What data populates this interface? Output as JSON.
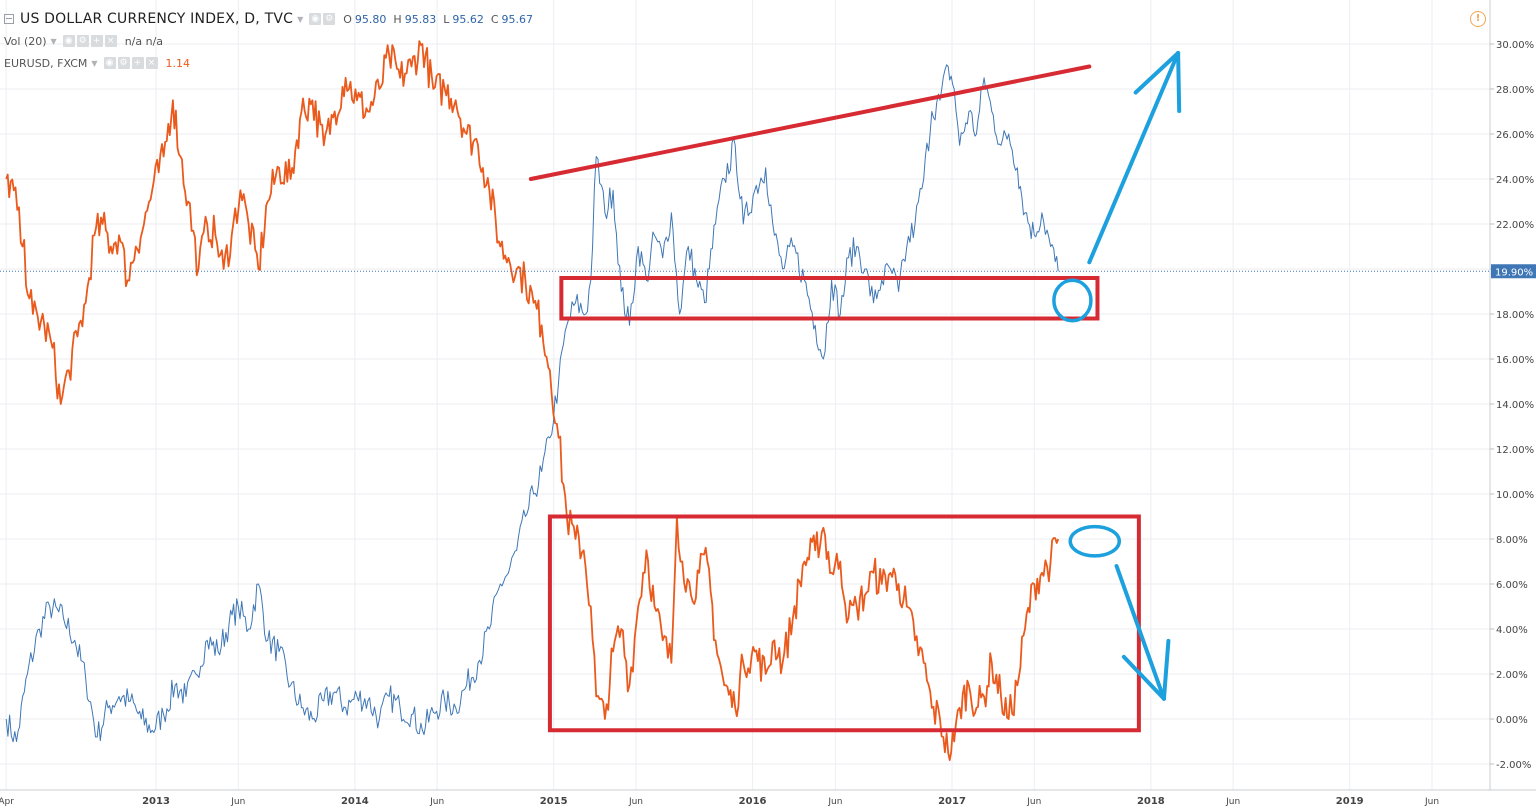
{
  "header": {
    "symbol_title": "US DOLLAR CURRENCY INDEX, D, TVC",
    "ohlc": [
      {
        "label": "O",
        "value": "95.80"
      },
      {
        "label": "H",
        "value": "95.83"
      },
      {
        "label": "L",
        "value": "95.62"
      },
      {
        "label": "C",
        "value": "95.67"
      }
    ],
    "volume_label": "Vol (20)",
    "volume_value": "n/a n/a",
    "compare_label": "EURUSD, FXCM",
    "compare_value": "1.14"
  },
  "icons": {
    "warning": "warning-icon",
    "collapse": "collapse-icon",
    "controls": [
      "eye-icon",
      "gear-icon",
      "plus-icon",
      "close-icon"
    ]
  },
  "colors": {
    "dxy_series": "#3f77b6",
    "eurusd_series": "#ea5a1d",
    "annotation_red": "#d72b33",
    "annotation_blue": "#1ca0de",
    "current_price_label_bg": "#3f77b6",
    "grid": "#eceef0"
  },
  "chart_data": {
    "type": "line",
    "y_scale": "percent",
    "ylim": [
      -3,
      31
    ],
    "y_ticks": [
      "30.00%",
      "28.00%",
      "26.00%",
      "24.00%",
      "22.00%",
      "20.00%",
      "18.00%",
      "16.00%",
      "14.00%",
      "12.00%",
      "10.00%",
      "8.00%",
      "6.00%",
      "4.00%",
      "2.00%",
      "0.00%",
      "-2.00%"
    ],
    "current_value_label": "19.90%",
    "current_value": 19.9,
    "x_ticks": [
      {
        "date": "2012-04-01",
        "label": "Apr"
      },
      {
        "date": "2013-01-01",
        "label": "2013"
      },
      {
        "date": "2013-06-01",
        "label": "Jun"
      },
      {
        "date": "2014-01-01",
        "label": "2014"
      },
      {
        "date": "2014-06-01",
        "label": "Jun"
      },
      {
        "date": "2015-01-01",
        "label": "2015"
      },
      {
        "date": "2015-06-01",
        "label": "Jun"
      },
      {
        "date": "2016-01-01",
        "label": "2016"
      },
      {
        "date": "2016-06-01",
        "label": "Jun"
      },
      {
        "date": "2017-01-01",
        "label": "2017"
      },
      {
        "date": "2017-06-01",
        "label": "Jun"
      },
      {
        "date": "2018-01-01",
        "label": "2018"
      },
      {
        "date": "2018-06-01",
        "label": "Jun"
      },
      {
        "date": "2019-01-01",
        "label": "2019"
      },
      {
        "date": "2019-06-01",
        "label": "Jun"
      }
    ],
    "xlim": [
      "2012-04-01",
      "2019-10-01"
    ],
    "grid": true,
    "series": [
      {
        "name": "US DOLLAR CURRENCY INDEX",
        "color": "#3f77b6",
        "points": [
          [
            "2012-04-01",
            0.0
          ],
          [
            "2012-04-20",
            -1.0
          ],
          [
            "2012-05-10",
            2.0
          ],
          [
            "2012-06-01",
            4.0
          ],
          [
            "2012-06-20",
            5.0
          ],
          [
            "2012-07-15",
            4.5
          ],
          [
            "2012-08-05",
            3.5
          ],
          [
            "2012-08-25",
            1.8
          ],
          [
            "2012-09-15",
            -0.8
          ],
          [
            "2012-10-05",
            0.5
          ],
          [
            "2012-10-25",
            1.0
          ],
          [
            "2012-11-15",
            0.8
          ],
          [
            "2012-12-05",
            0.0
          ],
          [
            "2012-12-25",
            -0.5
          ],
          [
            "2013-01-15",
            0.2
          ],
          [
            "2013-02-05",
            1.5
          ],
          [
            "2013-02-25",
            1.0
          ],
          [
            "2013-03-15",
            2.0
          ],
          [
            "2013-04-05",
            3.5
          ],
          [
            "2013-04-25",
            3.0
          ],
          [
            "2013-05-15",
            4.2
          ],
          [
            "2013-06-01",
            5.0
          ],
          [
            "2013-06-20",
            4.0
          ],
          [
            "2013-07-08",
            6.0
          ],
          [
            "2013-07-25",
            3.5
          ],
          [
            "2013-08-15",
            3.0
          ],
          [
            "2013-09-05",
            1.5
          ],
          [
            "2013-09-25",
            0.5
          ],
          [
            "2013-10-15",
            0.0
          ],
          [
            "2013-11-05",
            0.8
          ],
          [
            "2013-11-25",
            1.2
          ],
          [
            "2013-12-15",
            0.5
          ],
          [
            "2014-01-05",
            1.0
          ],
          [
            "2014-01-25",
            0.8
          ],
          [
            "2014-02-15",
            0.0
          ],
          [
            "2014-03-05",
            1.0
          ],
          [
            "2014-03-25",
            0.5
          ],
          [
            "2014-04-15",
            0.2
          ],
          [
            "2014-05-05",
            -0.5
          ],
          [
            "2014-05-25",
            0.3
          ],
          [
            "2014-06-15",
            0.8
          ],
          [
            "2014-07-05",
            0.5
          ],
          [
            "2014-07-25",
            1.5
          ],
          [
            "2014-08-15",
            2.5
          ],
          [
            "2014-09-05",
            4.0
          ],
          [
            "2014-09-25",
            6.0
          ],
          [
            "2014-10-10",
            6.5
          ],
          [
            "2014-10-25",
            7.5
          ],
          [
            "2014-11-10",
            9.0
          ],
          [
            "2014-11-25",
            10.0
          ],
          [
            "2014-12-10",
            11.0
          ],
          [
            "2014-12-25",
            12.5
          ],
          [
            "2015-01-10",
            15.0
          ],
          [
            "2015-01-25",
            17.5
          ],
          [
            "2015-02-10",
            18.5
          ],
          [
            "2015-03-01",
            18.0
          ],
          [
            "2015-03-10",
            19.5
          ],
          [
            "2015-03-20",
            25.0
          ],
          [
            "2015-04-05",
            22.5
          ],
          [
            "2015-04-20",
            23.5
          ],
          [
            "2015-05-05",
            19.0
          ],
          [
            "2015-05-20",
            17.5
          ],
          [
            "2015-06-05",
            21.0
          ],
          [
            "2015-06-20",
            19.5
          ],
          [
            "2015-07-05",
            21.5
          ],
          [
            "2015-07-20",
            20.5
          ],
          [
            "2015-08-05",
            22.5
          ],
          [
            "2015-08-20",
            18.0
          ],
          [
            "2015-09-05",
            21.0
          ],
          [
            "2015-09-20",
            19.5
          ],
          [
            "2015-10-05",
            18.5
          ],
          [
            "2015-10-25",
            22.0
          ],
          [
            "2015-11-10",
            24.0
          ],
          [
            "2015-11-30",
            25.5
          ],
          [
            "2015-12-15",
            22.0
          ],
          [
            "2016-01-05",
            23.5
          ],
          [
            "2016-01-25",
            24.5
          ],
          [
            "2016-02-10",
            21.5
          ],
          [
            "2016-02-25",
            20.0
          ],
          [
            "2016-03-15",
            21.0
          ],
          [
            "2016-04-05",
            19.5
          ],
          [
            "2016-04-25",
            17.5
          ],
          [
            "2016-05-10",
            16.0
          ],
          [
            "2016-05-25",
            19.5
          ],
          [
            "2016-06-10",
            18.0
          ],
          [
            "2016-06-25",
            20.5
          ],
          [
            "2016-07-10",
            21.0
          ],
          [
            "2016-07-25",
            20.0
          ],
          [
            "2016-08-10",
            18.5
          ],
          [
            "2016-08-25",
            19.5
          ],
          [
            "2016-09-10",
            20.0
          ],
          [
            "2016-09-25",
            19.0
          ],
          [
            "2016-10-10",
            21.0
          ],
          [
            "2016-10-25",
            22.0
          ],
          [
            "2016-11-10",
            24.0
          ],
          [
            "2016-11-25",
            27.0
          ],
          [
            "2016-12-10",
            27.5
          ],
          [
            "2016-12-25",
            29.0
          ],
          [
            "2017-01-05",
            28.0
          ],
          [
            "2017-01-15",
            25.5
          ],
          [
            "2017-02-01",
            27.0
          ],
          [
            "2017-02-15",
            26.0
          ],
          [
            "2017-03-01",
            28.5
          ],
          [
            "2017-03-15",
            27.0
          ],
          [
            "2017-04-01",
            25.5
          ],
          [
            "2017-04-15",
            26.0
          ],
          [
            "2017-05-01",
            24.5
          ],
          [
            "2017-05-15",
            22.5
          ],
          [
            "2017-06-01",
            21.5
          ],
          [
            "2017-06-15",
            22.5
          ],
          [
            "2017-07-01",
            21.0
          ],
          [
            "2017-07-15",
            19.9
          ]
        ]
      },
      {
        "name": "EURUSD, FXCM",
        "color": "#ea5a1d",
        "points": [
          [
            "2012-04-01",
            24.0
          ],
          [
            "2012-04-15",
            23.5
          ],
          [
            "2012-05-01",
            21.0
          ],
          [
            "2012-05-20",
            18.0
          ],
          [
            "2012-06-10",
            17.5
          ],
          [
            "2012-06-25",
            16.5
          ],
          [
            "2012-07-10",
            14.0
          ],
          [
            "2012-07-25",
            15.5
          ],
          [
            "2012-08-10",
            17.0
          ],
          [
            "2012-08-25",
            18.5
          ],
          [
            "2012-09-10",
            21.5
          ],
          [
            "2012-09-25",
            22.0
          ],
          [
            "2012-10-10",
            21.0
          ],
          [
            "2012-10-25",
            21.5
          ],
          [
            "2012-11-10",
            19.5
          ],
          [
            "2012-11-25",
            21.0
          ],
          [
            "2012-12-10",
            22.0
          ],
          [
            "2012-12-25",
            23.5
          ],
          [
            "2013-01-15",
            25.0
          ],
          [
            "2013-02-01",
            27.5
          ],
          [
            "2013-02-15",
            25.0
          ],
          [
            "2013-03-01",
            23.0
          ],
          [
            "2013-03-20",
            20.0
          ],
          [
            "2013-04-05",
            22.0
          ],
          [
            "2013-04-20",
            21.5
          ],
          [
            "2013-05-05",
            20.0
          ],
          [
            "2013-05-20",
            21.5
          ],
          [
            "2013-06-05",
            23.5
          ],
          [
            "2013-06-20",
            22.0
          ],
          [
            "2013-07-08",
            20.0
          ],
          [
            "2013-07-25",
            23.0
          ],
          [
            "2013-08-15",
            24.5
          ],
          [
            "2013-09-05",
            24.0
          ],
          [
            "2013-09-25",
            27.0
          ],
          [
            "2013-10-15",
            27.5
          ],
          [
            "2013-11-05",
            25.5
          ],
          [
            "2013-11-25",
            27.0
          ],
          [
            "2013-12-15",
            28.5
          ],
          [
            "2014-01-05",
            27.5
          ],
          [
            "2014-01-25",
            27.0
          ],
          [
            "2014-02-15",
            28.0
          ],
          [
            "2014-03-05",
            29.5
          ],
          [
            "2014-03-25",
            28.5
          ],
          [
            "2014-04-15",
            29.0
          ],
          [
            "2014-05-05",
            30.0
          ],
          [
            "2014-05-25",
            28.0
          ],
          [
            "2014-06-15",
            28.0
          ],
          [
            "2014-07-05",
            27.5
          ],
          [
            "2014-07-25",
            26.0
          ],
          [
            "2014-08-15",
            25.5
          ],
          [
            "2014-09-05",
            23.5
          ],
          [
            "2014-09-25",
            21.0
          ],
          [
            "2014-10-10",
            20.5
          ],
          [
            "2014-10-25",
            20.0
          ],
          [
            "2014-11-10",
            19.5
          ],
          [
            "2014-11-25",
            18.5
          ],
          [
            "2014-12-10",
            17.5
          ],
          [
            "2014-12-25",
            15.5
          ],
          [
            "2015-01-10",
            12.5
          ],
          [
            "2015-01-25",
            9.0
          ],
          [
            "2015-02-10",
            8.0
          ],
          [
            "2015-02-25",
            7.5
          ],
          [
            "2015-03-10",
            5.0
          ],
          [
            "2015-03-20",
            1.0
          ],
          [
            "2015-04-05",
            0.0
          ],
          [
            "2015-04-20",
            3.0
          ],
          [
            "2015-05-05",
            4.0
          ],
          [
            "2015-05-20",
            1.5
          ],
          [
            "2015-06-05",
            5.0
          ],
          [
            "2015-06-20",
            7.5
          ],
          [
            "2015-07-05",
            5.0
          ],
          [
            "2015-07-20",
            3.5
          ],
          [
            "2015-08-05",
            2.5
          ],
          [
            "2015-08-15",
            9.0
          ],
          [
            "2015-08-25",
            7.0
          ],
          [
            "2015-09-10",
            5.5
          ],
          [
            "2015-09-25",
            6.5
          ],
          [
            "2015-10-10",
            7.0
          ],
          [
            "2015-10-25",
            3.5
          ],
          [
            "2015-11-10",
            1.5
          ],
          [
            "2015-11-30",
            0.5
          ],
          [
            "2015-12-15",
            2.5
          ],
          [
            "2016-01-05",
            3.0
          ],
          [
            "2016-01-25",
            2.0
          ],
          [
            "2016-02-10",
            3.5
          ],
          [
            "2016-02-25",
            2.5
          ],
          [
            "2016-03-15",
            4.5
          ],
          [
            "2016-04-05",
            7.0
          ],
          [
            "2016-04-25",
            7.5
          ],
          [
            "2016-05-10",
            8.5
          ],
          [
            "2016-05-25",
            6.5
          ],
          [
            "2016-06-10",
            7.0
          ],
          [
            "2016-06-25",
            4.5
          ],
          [
            "2016-07-10",
            5.0
          ],
          [
            "2016-07-25",
            5.5
          ],
          [
            "2016-08-10",
            6.5
          ],
          [
            "2016-08-25",
            6.0
          ],
          [
            "2016-09-10",
            6.5
          ],
          [
            "2016-09-25",
            6.0
          ],
          [
            "2016-10-10",
            5.0
          ],
          [
            "2016-10-25",
            3.5
          ],
          [
            "2016-11-10",
            2.5
          ],
          [
            "2016-11-25",
            0.5
          ],
          [
            "2016-12-10",
            0.0
          ],
          [
            "2016-12-25",
            -1.5
          ],
          [
            "2017-01-05",
            -1.0
          ],
          [
            "2017-01-15",
            0.5
          ],
          [
            "2017-02-01",
            1.5
          ],
          [
            "2017-02-15",
            0.5
          ],
          [
            "2017-03-01",
            1.0
          ],
          [
            "2017-03-15",
            2.5
          ],
          [
            "2017-04-01",
            1.0
          ],
          [
            "2017-04-15",
            0.0
          ],
          [
            "2017-05-01",
            1.5
          ],
          [
            "2017-05-15",
            4.0
          ],
          [
            "2017-06-01",
            6.0
          ],
          [
            "2017-06-15",
            6.5
          ],
          [
            "2017-07-01",
            7.0
          ],
          [
            "2017-07-15",
            8.0
          ]
        ]
      }
    ],
    "annotations": [
      {
        "kind": "trend_line",
        "color": "#d72b33",
        "from": [
          "2014-11-20",
          24.0
        ],
        "to": [
          "2017-09-10",
          29.0
        ]
      },
      {
        "kind": "rectangle",
        "color": "#d72b33",
        "from": [
          "2015-01-15",
          17.8
        ],
        "to": [
          "2017-09-25",
          19.6
        ]
      },
      {
        "kind": "rectangle",
        "color": "#d72b33",
        "from": [
          "2014-12-25",
          -0.5
        ],
        "to": [
          "2017-12-10",
          9.0
        ]
      },
      {
        "kind": "ellipse",
        "color": "#1ca0de",
        "center": [
          "2017-08-10",
          18.6
        ],
        "radius_days": 34,
        "radius_value": 0.9
      },
      {
        "kind": "ellipse",
        "color": "#1ca0de",
        "center": [
          "2017-09-20",
          7.9
        ],
        "radius_days": 45,
        "radius_value": 0.65
      },
      {
        "kind": "arrow",
        "color": "#1ca0de",
        "from": [
          "2017-09-10",
          20.3
        ],
        "to": [
          "2018-02-20",
          29.6
        ]
      },
      {
        "kind": "arrow",
        "color": "#1ca0de",
        "from": [
          "2017-10-30",
          6.8
        ],
        "to": [
          "2018-01-25",
          0.9
        ]
      }
    ]
  }
}
